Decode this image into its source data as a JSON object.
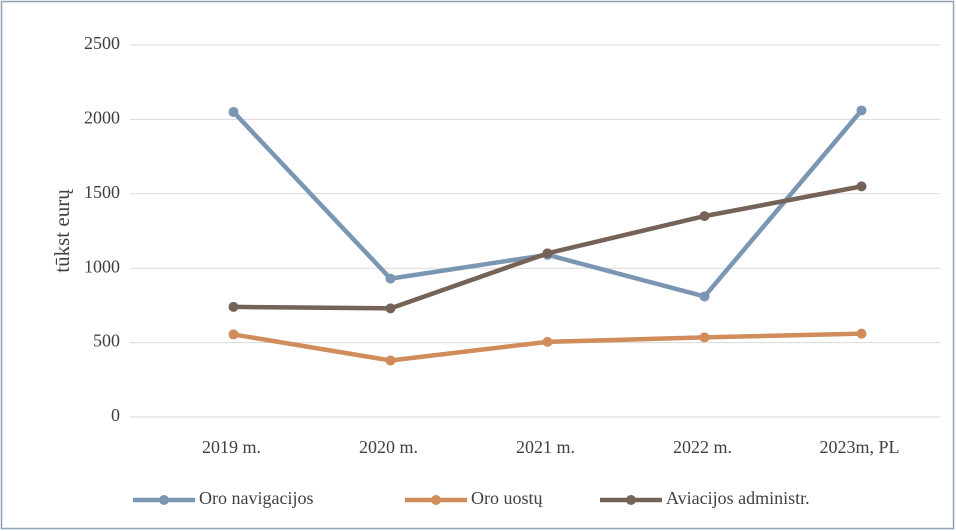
{
  "chart_data": {
    "type": "line",
    "y_label": "tūkst eurų",
    "categories": [
      "2019 m.",
      "2020 m.",
      "2021 m.",
      "2022 m.",
      "2023m, PL"
    ],
    "series": [
      {
        "name": "Oro navigacijos",
        "color": "#7a96b2",
        "values": [
          2050,
          930,
          1090,
          810,
          2060
        ]
      },
      {
        "name": "Oro uostų",
        "color": "#d08c5a",
        "values": [
          555,
          380,
          505,
          535,
          560
        ]
      },
      {
        "name": "Aviacijos administr.",
        "color": "#766357",
        "values": [
          740,
          730,
          1100,
          1350,
          1550
        ]
      }
    ],
    "ylim": [
      0,
      2500
    ],
    "yticks": [
      0,
      500,
      1000,
      1500,
      2000,
      2500
    ],
    "grid": true,
    "legend": "bottom"
  }
}
